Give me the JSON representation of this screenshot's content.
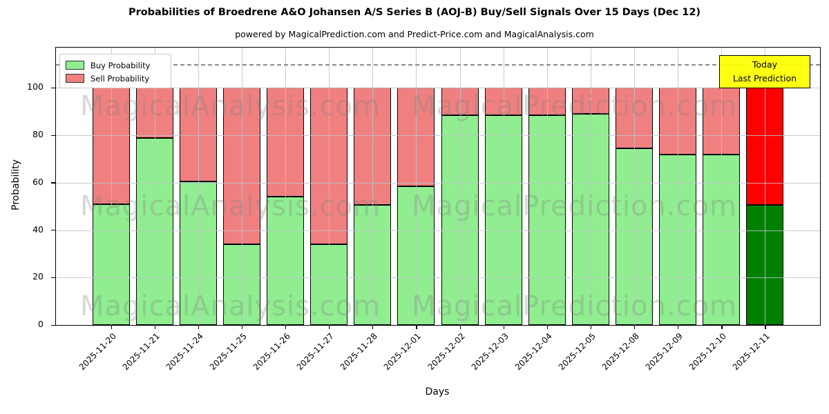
{
  "header": {
    "title": "Probabilities of Broedrene A&O Johansen A/S Series B (AOJ-B) Buy/Sell Signals Over 15 Days (Dec 12)",
    "subtitle": "powered by MagicalPrediction.com and Predict-Price.com and MagicalAnalysis.com"
  },
  "legend": {
    "items": [
      {
        "label": "Buy Probability",
        "color": "#90ee90"
      },
      {
        "label": "Sell Probability",
        "color": "#f08080"
      }
    ]
  },
  "annotation": {
    "line1": "Today",
    "line2": "Last Prediction",
    "bg": "#ffff00"
  },
  "watermarks": {
    "left": "MagicalAnalysis.com",
    "right": "MagicalPrediction.com"
  },
  "chart_data": {
    "type": "bar",
    "stacked": true,
    "title": "Probabilities of Broedrene A&O Johansen A/S Series B (AOJ-B) Buy/Sell Signals Over 15 Days (Dec 12)",
    "xlabel": "Days",
    "ylabel": "Probability",
    "categories": [
      "2025-11-20",
      "2025-11-21",
      "2025-11-24",
      "2025-11-25",
      "2025-11-26",
      "2025-11-27",
      "2025-11-28",
      "2025-12-01",
      "2025-12-02",
      "2025-12-03",
      "2025-12-04",
      "2025-12-05",
      "2025-12-08",
      "2025-12-09",
      "2025-12-10",
      "2025-12-11"
    ],
    "series": [
      {
        "name": "Buy Probability",
        "values": [
          51,
          79,
          60.5,
          34,
          54,
          34,
          50.5,
          58.5,
          88.5,
          88.5,
          88.5,
          89,
          74.5,
          72,
          72,
          50.5
        ],
        "color": "#90ee90",
        "today_color": "#008000"
      },
      {
        "name": "Sell Probability",
        "values": [
          49,
          21,
          39.5,
          66,
          46,
          66,
          49.5,
          41.5,
          11.5,
          11.5,
          11.5,
          11,
          25.5,
          28,
          28,
          49.5
        ],
        "color": "#f08080",
        "today_color": "#ff0000"
      }
    ],
    "ylim": [
      0,
      117
    ],
    "yticks": [
      0,
      20,
      40,
      60,
      80,
      100
    ],
    "grid": true,
    "legend_position": "upper left",
    "dashed_line_y": 110,
    "today_index": 15
  }
}
